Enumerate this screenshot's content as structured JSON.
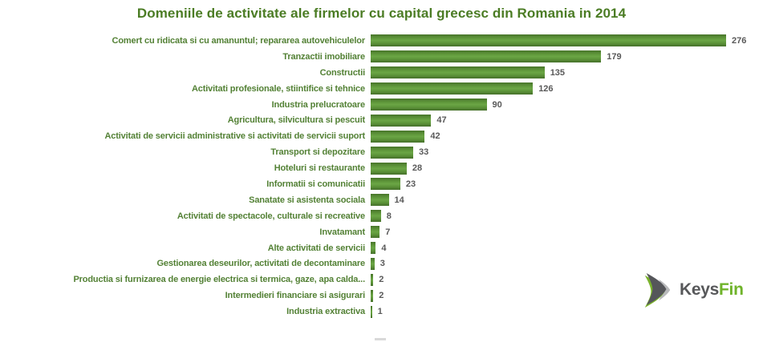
{
  "title": "Domeniile de activitate ale firmelor cu capital grecesc din Romania in 2014",
  "colors": {
    "title_text": "#4b7c24",
    "category_text": "#538135",
    "value_text": "#595959",
    "bar_green": "#538135",
    "logo_gray": "#57585a",
    "logo_green": "#6fb32a"
  },
  "logo": {
    "keys": "Keys",
    "fin": "Fin"
  },
  "chart_data": {
    "type": "bar",
    "orientation": "horizontal",
    "title": "Domeniile de activitate ale firmelor cu capital grecesc din Romania in 2014",
    "categories": [
      "Comert cu ridicata si cu amanuntul; repararea autovehiculelor",
      "Tranzactii imobiliare",
      "Constructii",
      "Activitati profesionale, stiintifice si tehnice",
      "Industria prelucratoare",
      "Agricultura, silvicultura si pescuit",
      "Activitati de servicii administrative si activitati de servicii suport",
      "Transport si depozitare",
      "Hoteluri si restaurante",
      "Informatii si comunicatii",
      "Sanatate si asistenta sociala",
      "Activitati de spectacole, culturale si recreative",
      "Invatamant",
      "Alte activitati de servicii",
      "Gestionarea deseurilor, activitati de decontaminare",
      "Productia si furnizarea de energie electrica si termica, gaze, apa calda...",
      "Intermedieri financiare si asigurari",
      "Industria extractiva"
    ],
    "values": [
      276,
      179,
      135,
      126,
      90,
      47,
      42,
      33,
      28,
      23,
      14,
      8,
      7,
      4,
      3,
      2,
      2,
      1
    ],
    "xlabel": "",
    "ylabel": "",
    "xlim": [
      0,
      276
    ],
    "grid": false,
    "legend": "none",
    "value_labels": true
  }
}
